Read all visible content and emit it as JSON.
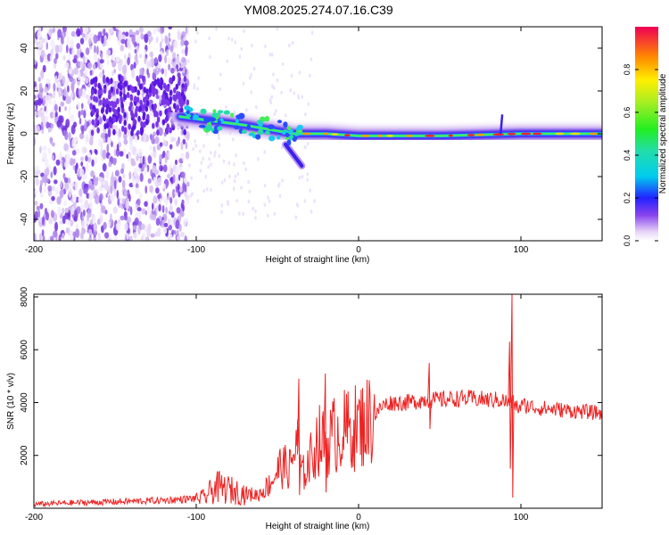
{
  "title": "YM08.2025.274.07.16.C39",
  "chart_data": [
    {
      "type": "heatmap",
      "title": "YM08.2025.274.07.16.C39",
      "xlabel": "Height of straight line (km)",
      "ylabel": "Frequency (Hz)",
      "xlim": [
        -200,
        150
      ],
      "ylim": [
        -50,
        50
      ],
      "xticks": [
        -200,
        -100,
        0,
        100
      ],
      "xtick_labels": [
        "-200",
        "-100",
        "0",
        "100"
      ],
      "yticks": [
        -40,
        -20,
        0,
        20,
        40
      ],
      "ytick_labels": [
        "-40",
        "-20",
        "0",
        "20",
        "40"
      ],
      "grid": false,
      "track": [
        {
          "x": -110,
          "y": 8
        },
        {
          "x": -90,
          "y": 6
        },
        {
          "x": -70,
          "y": 4
        },
        {
          "x": -55,
          "y": 2
        },
        {
          "x": -40,
          "y": 0
        },
        {
          "x": -20,
          "y": 0
        },
        {
          "x": 0,
          "y": -1
        },
        {
          "x": 50,
          "y": -1
        },
        {
          "x": 100,
          "y": 0
        },
        {
          "x": 150,
          "y": 0
        }
      ],
      "branch": [
        {
          "x": -45,
          "y": -5
        },
        {
          "x": -35,
          "y": -15
        }
      ],
      "colorbar": {
        "label": "Normalized spectral amplitude",
        "range": [
          0.0,
          1.0
        ],
        "ticks": [
          0.0,
          0.2,
          0.4,
          0.6,
          0.8
        ],
        "tick_labels": [
          "0.0",
          "0.2",
          "0.4",
          "0.6",
          "0.8"
        ]
      }
    },
    {
      "type": "line",
      "xlabel": "Height of straight line (km)",
      "ylabel": "SNR (10 * v/v)",
      "xlim": [
        -200,
        150
      ],
      "ylim": [
        0,
        8100
      ],
      "xticks": [
        -200,
        -100,
        0,
        100
      ],
      "xtick_labels": [
        "-200",
        "-100",
        "0",
        "100"
      ],
      "yticks": [
        2000,
        4000,
        6000,
        8000
      ],
      "ytick_labels": [
        "2000",
        "4000",
        "6000",
        "8000"
      ],
      "grid": false,
      "series": [
        {
          "name": "SNR",
          "color": "#ee2222",
          "x": [
            -200,
            -180,
            -160,
            -140,
            -120,
            -105,
            -95,
            -88,
            -80,
            -70,
            -62,
            -55,
            -48,
            -42,
            -38,
            -35,
            -30,
            -25,
            -20,
            -15,
            -10,
            -5,
            0,
            5,
            10,
            15,
            20,
            25,
            30,
            40,
            45,
            50,
            60,
            70,
            80,
            88,
            92,
            95,
            98,
            102,
            110,
            120,
            130,
            140,
            150
          ],
          "y": [
            150,
            200,
            230,
            260,
            300,
            350,
            400,
            800,
            700,
            550,
            500,
            900,
            1600,
            1500,
            2600,
            1200,
            1800,
            2600,
            2400,
            2800,
            2900,
            3000,
            3100,
            3300,
            3500,
            3900,
            4000,
            4000,
            4000,
            4100,
            4100,
            4100,
            4150,
            4150,
            4100,
            4100,
            4000,
            4000,
            3800,
            3900,
            3800,
            3750,
            3700,
            3650,
            3600
          ]
        }
      ],
      "spikes": [
        {
          "x": 43.5,
          "hi": 5500,
          "lo": 3000
        },
        {
          "x": 94.5,
          "hi": 8100,
          "lo": 400
        },
        {
          "x": 93.0,
          "hi": 6300,
          "lo": 1500
        },
        {
          "x": -36.8,
          "hi": 4900,
          "lo": 500
        },
        {
          "x": -20.5,
          "hi": 5100,
          "lo": 600
        }
      ]
    }
  ]
}
